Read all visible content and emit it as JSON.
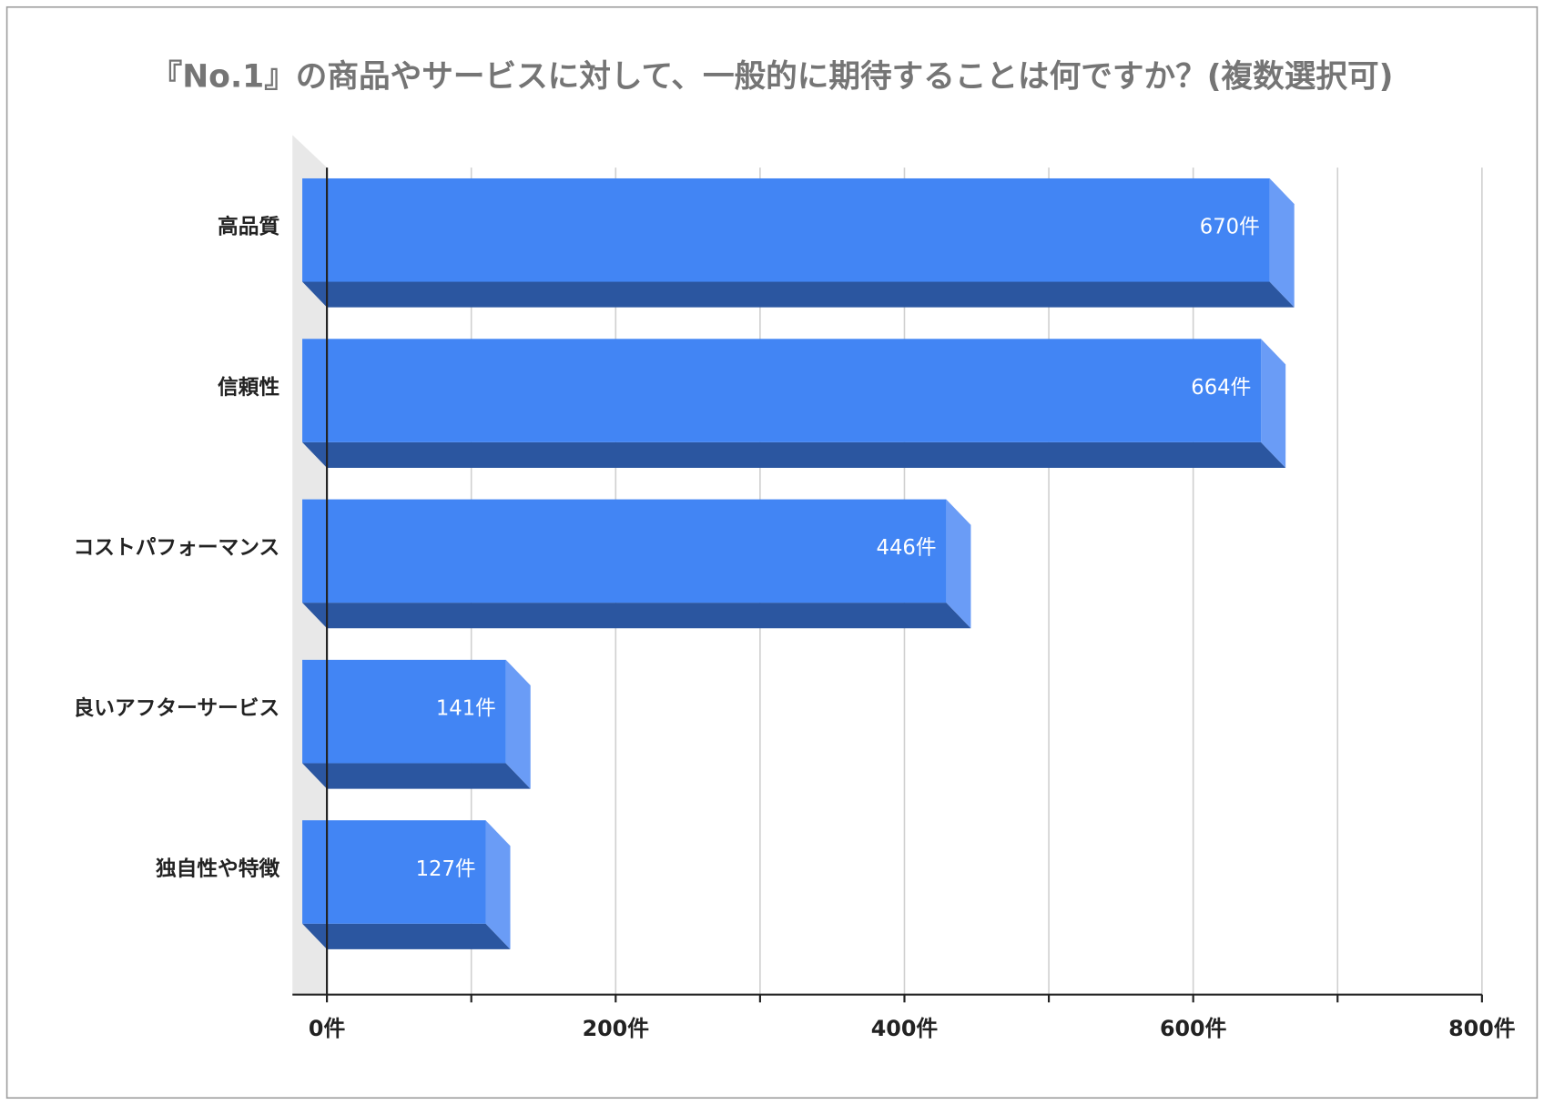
{
  "chart_data": {
    "type": "bar3d",
    "orientation": "horizontal",
    "title": "『No.1』の商品やサービスに対して、一般的に期待することは何ですか？(複数選択可)",
    "categories": [
      "高品質",
      "信頼性",
      "コストパフォーマンス",
      "良いアフターサービス",
      "独自性や特徴"
    ],
    "values": [
      670,
      664,
      446,
      141,
      127
    ],
    "value_labels": [
      "670件",
      "664件",
      "446件",
      "141件",
      "127件"
    ],
    "color": "#4285f4",
    "xlim": [
      0,
      800
    ],
    "xticks": [
      {
        "value": 0,
        "label": "0件"
      },
      {
        "value": 200,
        "label": "200件"
      },
      {
        "value": 400,
        "label": "400件"
      },
      {
        "value": 600,
        "label": "600件"
      },
      {
        "value": 800,
        "label": "800件"
      }
    ],
    "xminorticks": [
      100,
      300,
      500,
      700
    ],
    "grid": true
  }
}
